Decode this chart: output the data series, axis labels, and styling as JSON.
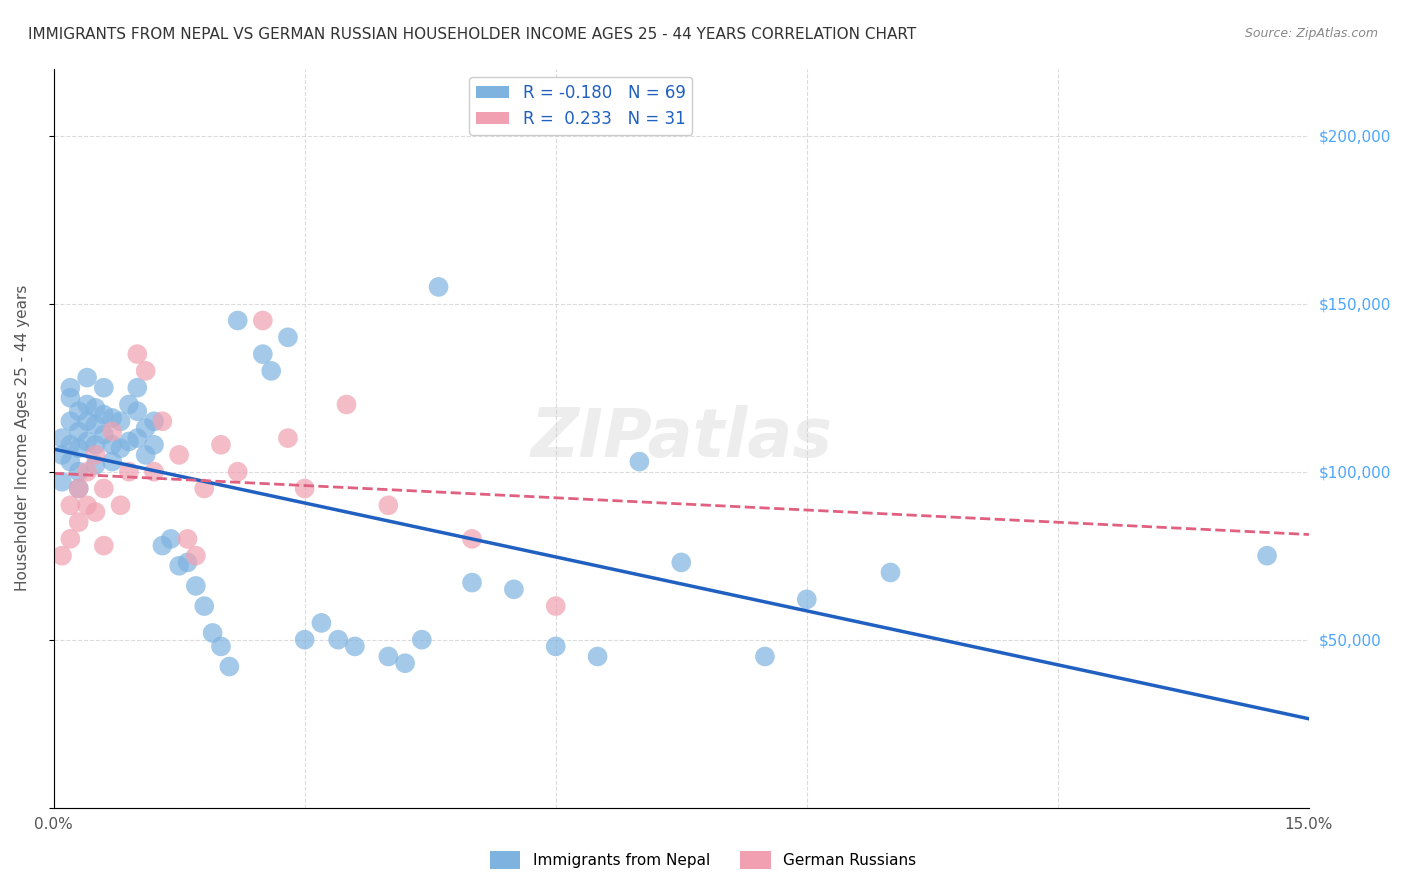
{
  "title": "IMMIGRANTS FROM NEPAL VS GERMAN RUSSIAN HOUSEHOLDER INCOME AGES 25 - 44 YEARS CORRELATION CHART",
  "source": "Source: ZipAtlas.com",
  "xlabel_bottom": "",
  "ylabel": "Householder Income Ages 25 - 44 years",
  "xlim": [
    0.0,
    0.15
  ],
  "ylim": [
    0,
    220000
  ],
  "xticks": [
    0.0,
    0.03,
    0.06,
    0.09,
    0.12,
    0.15
  ],
  "xticklabels": [
    "0.0%",
    "",
    "",
    "",
    "",
    "15.0%"
  ],
  "yticks_right": [
    0,
    50000,
    100000,
    150000,
    200000
  ],
  "yticklabels_right": [
    "",
    "$50,000",
    "$100,000",
    "$150,000",
    "$200,000"
  ],
  "nepal_color": "#7eb3e0",
  "german_russian_color": "#f0a0b0",
  "nepal_line_color": "#2060c0",
  "german_russian_line_color": "#e06080",
  "nepal_R": -0.18,
  "nepal_N": 69,
  "german_russian_R": 0.233,
  "german_russian_N": 31,
  "watermark": "ZIPatlas",
  "nepal_x": [
    0.001,
    0.001,
    0.001,
    0.002,
    0.002,
    0.002,
    0.002,
    0.002,
    0.003,
    0.003,
    0.003,
    0.003,
    0.003,
    0.004,
    0.004,
    0.004,
    0.004,
    0.005,
    0.005,
    0.005,
    0.005,
    0.006,
    0.006,
    0.006,
    0.007,
    0.007,
    0.007,
    0.008,
    0.008,
    0.009,
    0.009,
    0.01,
    0.01,
    0.01,
    0.011,
    0.011,
    0.012,
    0.012,
    0.013,
    0.014,
    0.015,
    0.016,
    0.017,
    0.018,
    0.019,
    0.02,
    0.021,
    0.022,
    0.025,
    0.026,
    0.028,
    0.03,
    0.032,
    0.034,
    0.036,
    0.04,
    0.042,
    0.044,
    0.046,
    0.05,
    0.055,
    0.06,
    0.065,
    0.07,
    0.075,
    0.085,
    0.09,
    0.1,
    0.145
  ],
  "nepal_y": [
    97000,
    110000,
    105000,
    108000,
    115000,
    103000,
    122000,
    125000,
    118000,
    112000,
    107000,
    100000,
    95000,
    128000,
    120000,
    115000,
    109000,
    119000,
    114000,
    108000,
    102000,
    125000,
    117000,
    111000,
    116000,
    108000,
    103000,
    115000,
    107000,
    120000,
    109000,
    118000,
    125000,
    110000,
    113000,
    105000,
    115000,
    108000,
    78000,
    80000,
    72000,
    73000,
    66000,
    60000,
    52000,
    48000,
    42000,
    145000,
    135000,
    130000,
    140000,
    50000,
    55000,
    50000,
    48000,
    45000,
    43000,
    50000,
    155000,
    67000,
    65000,
    48000,
    45000,
    103000,
    73000,
    45000,
    62000,
    70000,
    75000
  ],
  "german_russian_x": [
    0.001,
    0.002,
    0.002,
    0.003,
    0.003,
    0.004,
    0.004,
    0.005,
    0.005,
    0.006,
    0.006,
    0.007,
    0.008,
    0.009,
    0.01,
    0.011,
    0.012,
    0.013,
    0.015,
    0.016,
    0.017,
    0.018,
    0.02,
    0.022,
    0.025,
    0.028,
    0.03,
    0.035,
    0.04,
    0.05,
    0.06
  ],
  "german_russian_y": [
    75000,
    80000,
    90000,
    85000,
    95000,
    90000,
    100000,
    88000,
    105000,
    78000,
    95000,
    112000,
    90000,
    100000,
    135000,
    130000,
    100000,
    115000,
    105000,
    80000,
    75000,
    95000,
    108000,
    100000,
    145000,
    110000,
    95000,
    120000,
    90000,
    80000,
    60000
  ],
  "legend_nepal_label": "Immigrants from Nepal",
  "legend_german_label": "German Russians",
  "background_color": "#ffffff",
  "grid_color": "#cccccc",
  "title_color": "#333333",
  "right_axis_color": "#4da6ff"
}
